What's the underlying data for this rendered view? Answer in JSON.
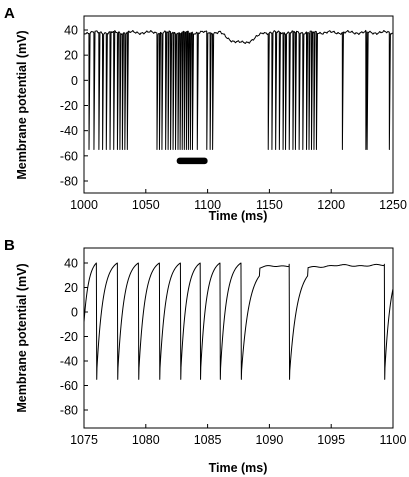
{
  "chart_data": [
    {
      "type": "line",
      "panel": "A",
      "title": "",
      "xlabel": "Time (ms)",
      "ylabel": "Membrane potential (mV)",
      "xlim": [
        1000,
        1250
      ],
      "ylim": [
        -90,
        45
      ],
      "xticks": [
        1000,
        1050,
        1100,
        1150,
        1200,
        1250
      ],
      "yticks": [
        -80,
        -60,
        -40,
        -20,
        0,
        20,
        40
      ],
      "grid": false,
      "legend": "none",
      "series": [
        {
          "spikes": [
            1004,
            1008,
            1012,
            1015,
            1018,
            1021,
            1024,
            1027,
            1029,
            1031,
            1033,
            1035,
            1059,
            1061,
            1063,
            1066,
            1068,
            1070,
            1072,
            1074,
            1076,
            1077.7,
            1079.4,
            1081.1,
            1082.8,
            1084.4,
            1086,
            1087.7,
            1091.6,
            1099.3,
            1102,
            1104,
            1149,
            1152,
            1155,
            1158,
            1161,
            1163,
            1166,
            1169,
            1171,
            1174,
            1177,
            1180,
            1182,
            1184,
            1186,
            1188,
            1209,
            1228,
            1229,
            1247
          ],
          "spike_trough_mV": -55,
          "plateau_mV": 38,
          "quiescent_dip": {
            "start": 1110,
            "end": 1145,
            "min_mV": 29
          }
        }
      ],
      "annotations": [
        {
          "type": "bar",
          "x_start": 1075,
          "x_end": 1100,
          "y": -64
        }
      ]
    },
    {
      "type": "line",
      "panel": "B",
      "title": "",
      "xlabel": "Time (ms)",
      "ylabel": "Membrane potential (mV)",
      "xlim": [
        1075,
        1100
      ],
      "ylim": [
        -90,
        45
      ],
      "xticks": [
        1075,
        1080,
        1085,
        1090,
        1095,
        1100
      ],
      "yticks": [
        -80,
        -60,
        -40,
        -20,
        0,
        20,
        40
      ],
      "grid": false,
      "legend": "none",
      "series": [
        {
          "spikes": [
            1076,
            1077.7,
            1079.4,
            1081.1,
            1082.8,
            1084.4,
            1086,
            1087.7,
            1091.6,
            1099.3
          ],
          "spike_trough_mV": -55,
          "peak_mV": 40,
          "plateau_mV": 38
        }
      ]
    }
  ]
}
